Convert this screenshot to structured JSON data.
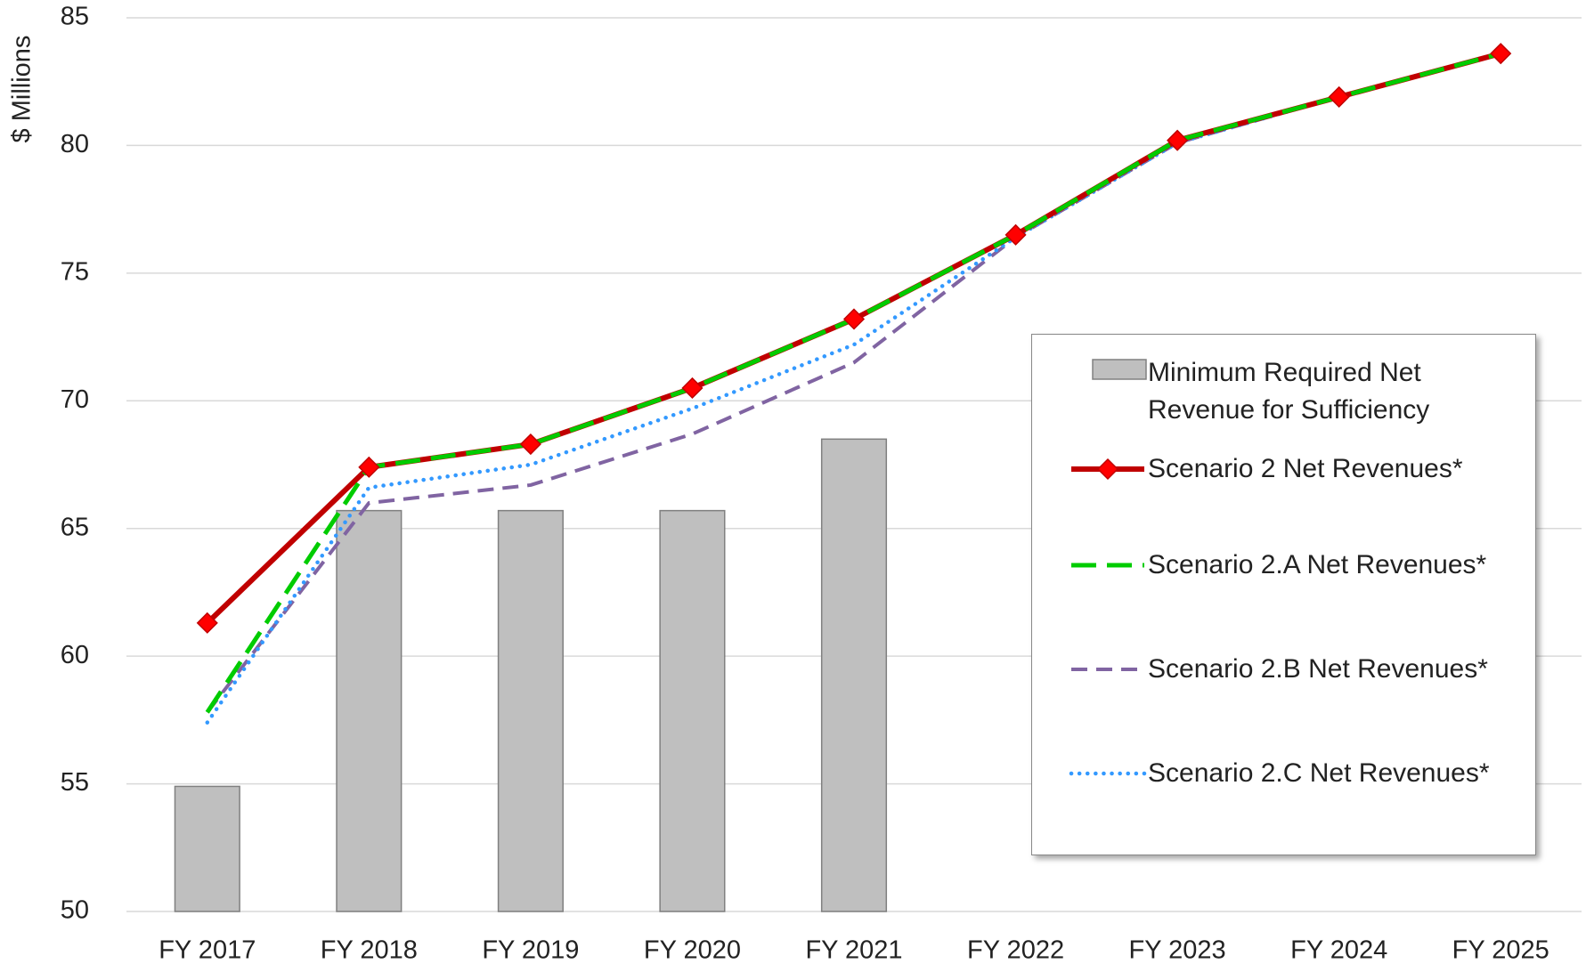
{
  "chart_data": {
    "type": "line",
    "y_label": "$ Millions",
    "categories": [
      "FY 2017",
      "FY 2018",
      "FY 2019",
      "FY 2020",
      "FY 2021",
      "FY 2022",
      "FY 2023",
      "FY 2024",
      "FY 2025"
    ],
    "ylim": [
      50,
      85
    ],
    "yticks": [
      50,
      55,
      60,
      65,
      70,
      75,
      80,
      85
    ],
    "grid": true,
    "legend": "right",
    "series": [
      {
        "name": "Minimum Required Net Revenue for Sufficiency",
        "type": "bar",
        "color": "#bfbfbf",
        "values": [
          54.9,
          65.7,
          65.7,
          65.7,
          68.5,
          null,
          null,
          null,
          null
        ]
      },
      {
        "name": "Scenario 2 Net Revenues*",
        "type": "line",
        "style": "solid",
        "marker": "diamond",
        "color": "#c00000",
        "values": [
          61.3,
          67.4,
          68.3,
          70.5,
          73.2,
          76.5,
          80.2,
          81.9,
          83.6
        ]
      },
      {
        "name": "Scenario 2.A Net Revenues*",
        "type": "line",
        "style": "dashed",
        "color": "#00cc00",
        "values": [
          57.8,
          67.4,
          68.3,
          70.5,
          73.2,
          76.5,
          80.2,
          81.9,
          83.6
        ]
      },
      {
        "name": "Scenario 2.B Net Revenues*",
        "type": "line",
        "style": "dashed-thin",
        "color": "#8064a2",
        "values": [
          57.8,
          66.0,
          66.7,
          68.7,
          71.5,
          76.4,
          80.1,
          81.9,
          83.6
        ]
      },
      {
        "name": "Scenario 2.C Net Revenues*",
        "type": "line",
        "style": "dotted",
        "color": "#3399ff",
        "values": [
          57.4,
          66.6,
          67.5,
          69.7,
          72.2,
          76.4,
          80.1,
          81.9,
          83.6
        ]
      }
    ]
  }
}
